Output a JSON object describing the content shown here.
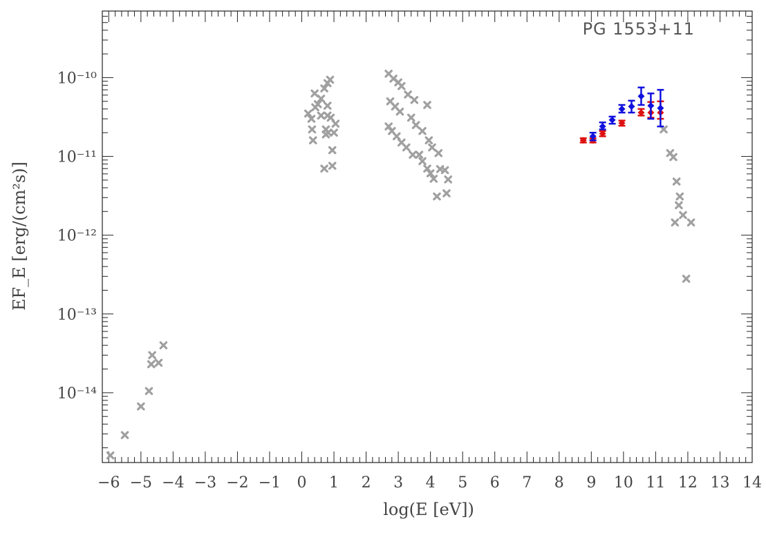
{
  "chart_data": {
    "type": "scatter",
    "title": "PG 1553+11",
    "xlabel": "log(E [eV])",
    "ylabel": "EF_E [erg/(cm²s)]",
    "xlim": [
      -6.2,
      14
    ],
    "ylim": [
      1.3e-15,
      7e-10
    ],
    "y_scale": "log",
    "x_ticks": [
      -6,
      -5,
      -4,
      -3,
      -2,
      -1,
      0,
      1,
      2,
      3,
      4,
      5,
      6,
      7,
      8,
      9,
      10,
      11,
      12,
      13,
      14
    ],
    "y_ticks": [
      {
        "value": 1e-10,
        "label": "10⁻¹⁰"
      },
      {
        "value": 1e-11,
        "label": "10⁻¹¹"
      },
      {
        "value": 1e-12,
        "label": "10⁻¹²"
      },
      {
        "value": 1e-13,
        "label": "10⁻¹³"
      },
      {
        "value": 1e-14,
        "label": "10⁻¹⁴"
      }
    ],
    "grid": false,
    "series": [
      {
        "color": "#a0a0a0",
        "marker": "x",
        "points": [
          [
            -5.95,
            1.6e-15
          ],
          [
            -5.5,
            2.9e-15
          ],
          [
            -5.0,
            6.7e-15
          ],
          [
            -4.75,
            1.05e-14
          ],
          [
            -4.68,
            2.3e-14
          ],
          [
            -4.65,
            3e-14
          ],
          [
            -4.45,
            2.4e-14
          ],
          [
            -4.3,
            4e-14
          ],
          [
            0.2,
            3.5e-11
          ],
          [
            0.3,
            3e-11
          ],
          [
            0.32,
            2.2e-11
          ],
          [
            0.35,
            1.6e-11
          ],
          [
            0.4,
            6.3e-11
          ],
          [
            0.42,
            4.2e-11
          ],
          [
            0.5,
            4.6e-11
          ],
          [
            0.6,
            5.4e-11
          ],
          [
            0.6,
            3.3e-11
          ],
          [
            0.7,
            7.3e-11
          ],
          [
            0.7,
            7e-12
          ],
          [
            0.75,
            2.2e-11
          ],
          [
            0.75,
            1.9e-11
          ],
          [
            0.8,
            8.5e-11
          ],
          [
            0.8,
            4.4e-11
          ],
          [
            0.8,
            3.3e-11
          ],
          [
            0.82,
            2e-11
          ],
          [
            0.88,
            9.4e-11
          ],
          [
            0.9,
            3.1e-11
          ],
          [
            0.95,
            1.2e-11
          ],
          [
            0.95,
            7.6e-12
          ],
          [
            1.0,
            2e-11
          ],
          [
            1.05,
            2.6e-11
          ],
          [
            2.7,
            1.12e-10
          ],
          [
            2.85,
            9.7e-11
          ],
          [
            3.0,
            8.7e-11
          ],
          [
            3.1,
            7.8e-11
          ],
          [
            3.3,
            6.1e-11
          ],
          [
            3.5,
            5.2e-11
          ],
          [
            3.9,
            4.5e-11
          ],
          [
            2.75,
            5e-11
          ],
          [
            2.9,
            4.3e-11
          ],
          [
            3.05,
            3.7e-11
          ],
          [
            3.4,
            3.1e-11
          ],
          [
            3.55,
            2.5e-11
          ],
          [
            3.75,
            2.1e-11
          ],
          [
            3.95,
            1.6e-11
          ],
          [
            4.05,
            1.3e-11
          ],
          [
            4.25,
            1.1e-11
          ],
          [
            2.7,
            2.4e-11
          ],
          [
            2.8,
            2.1e-11
          ],
          [
            2.95,
            1.8e-11
          ],
          [
            3.1,
            1.5e-11
          ],
          [
            3.25,
            1.3e-11
          ],
          [
            3.45,
            1.05e-11
          ],
          [
            3.65,
            1.05e-11
          ],
          [
            3.75,
            8.7e-12
          ],
          [
            3.9,
            7e-12
          ],
          [
            4.0,
            6.1e-12
          ],
          [
            4.1,
            5.2e-12
          ],
          [
            4.3,
            6.9e-12
          ],
          [
            4.45,
            6.7e-12
          ],
          [
            4.55,
            5.1e-12
          ],
          [
            4.2,
            3.1e-12
          ],
          [
            4.5,
            3.4e-12
          ],
          [
            11.25,
            2.2e-11
          ],
          [
            11.45,
            1.1e-11
          ],
          [
            11.55,
            9.8e-12
          ],
          [
            11.65,
            4.8e-12
          ],
          [
            11.75,
            3.1e-12
          ],
          [
            11.72,
            2.4e-12
          ],
          [
            11.85,
            1.8e-12
          ],
          [
            11.6,
            1.45e-12
          ],
          [
            12.1,
            1.45e-12
          ],
          [
            11.95,
            2.8e-13
          ]
        ]
      },
      {
        "color": "#dd1111",
        "marker": "diamond-errorbar",
        "points": [
          [
            8.75,
            1.6e-11,
            1.5e-11,
            1.7e-11
          ],
          [
            9.05,
            1.6e-11,
            1.5e-11,
            1.7e-11
          ],
          [
            9.35,
            1.95e-11,
            1.8e-11,
            2.1e-11
          ],
          [
            9.95,
            2.65e-11,
            2.45e-11,
            2.85e-11
          ],
          [
            10.55,
            3.6e-11,
            3.3e-11,
            4e-11
          ],
          [
            10.85,
            3.6e-11,
            3.1e-11,
            4.9e-11
          ],
          [
            11.15,
            3.6e-11,
            3e-11,
            5e-11
          ]
        ]
      },
      {
        "color": "#1111dd",
        "marker": "diamond-errorbar",
        "points": [
          [
            9.05,
            1.8e-11,
            1.6e-11,
            2e-11
          ],
          [
            9.35,
            2.4e-11,
            2.2e-11,
            2.7e-11
          ],
          [
            9.65,
            2.9e-11,
            2.6e-11,
            3.2e-11
          ],
          [
            9.95,
            4e-11,
            3.6e-11,
            4.5e-11
          ],
          [
            10.25,
            4.3e-11,
            3.6e-11,
            5.1e-11
          ],
          [
            10.55,
            5.8e-11,
            4.5e-11,
            7.5e-11
          ],
          [
            10.85,
            4.4e-11,
            3e-11,
            6.3e-11
          ],
          [
            11.15,
            4.1e-11,
            2.4e-11,
            7e-11
          ]
        ]
      }
    ]
  }
}
